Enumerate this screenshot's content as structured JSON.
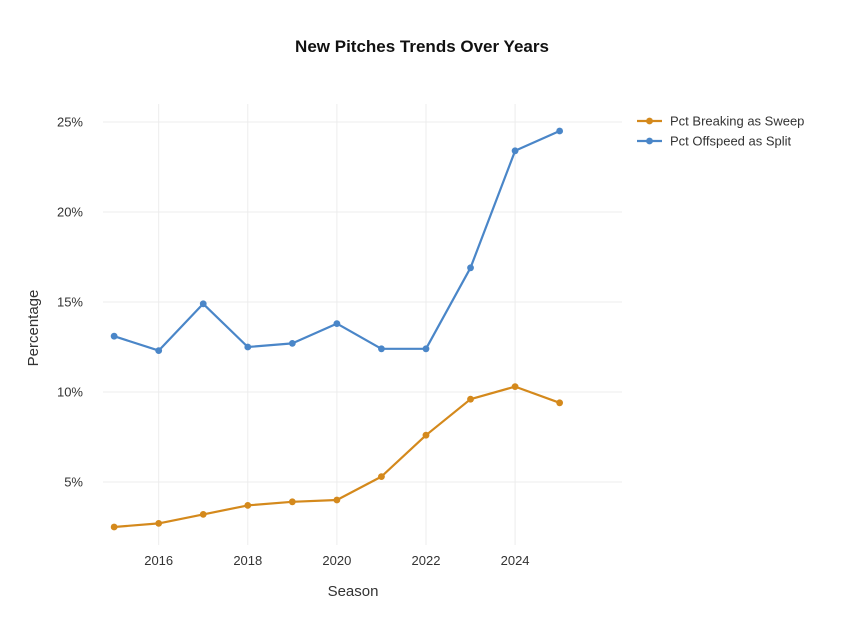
{
  "chart_data": {
    "type": "line",
    "title": "New Pitches Trends Over Years",
    "xlabel": "Season",
    "ylabel": "Percentage",
    "x": [
      2015,
      2016,
      2017,
      2018,
      2019,
      2020,
      2021,
      2022,
      2023,
      2024,
      2025
    ],
    "xticks": [
      2016,
      2018,
      2020,
      2022,
      2024
    ],
    "xtick_labels": [
      "2016",
      "2018",
      "2020",
      "2022",
      "2024"
    ],
    "yticks": [
      5,
      10,
      15,
      20,
      25
    ],
    "ytick_labels": [
      "5%",
      "10%",
      "15%",
      "20%",
      "25%"
    ],
    "xlim": [
      2014.75,
      2026.4
    ],
    "ylim": [
      1.5,
      26
    ],
    "grid": true,
    "legend_position": "top-right",
    "series": [
      {
        "name": "Pct Breaking as Sweep",
        "color": "#D4891C",
        "values": [
          2.5,
          2.7,
          3.2,
          3.7,
          3.9,
          4.0,
          5.3,
          7.6,
          9.6,
          10.3,
          9.4
        ]
      },
      {
        "name": "Pct Offspeed as Split",
        "color": "#4A86C8",
        "values": [
          13.1,
          12.3,
          14.9,
          12.5,
          12.7,
          13.8,
          12.4,
          12.4,
          16.9,
          23.4,
          24.5
        ]
      }
    ]
  }
}
